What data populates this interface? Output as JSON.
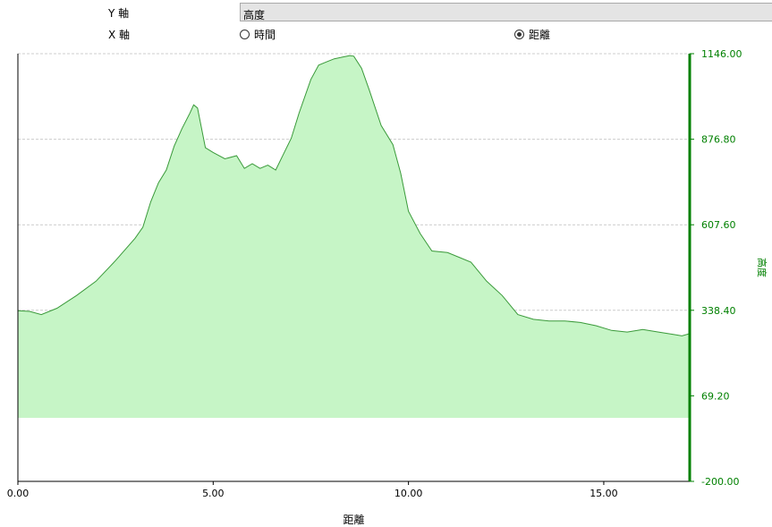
{
  "controls": {
    "y_axis_label": "Y 軸",
    "x_axis_label": "X 軸",
    "y_selected": "高度",
    "x_options": [
      {
        "label": "時間",
        "checked": false
      },
      {
        "label": "距離",
        "checked": true
      }
    ]
  },
  "chart_data": {
    "type": "area",
    "title": "",
    "xlabel": "距離",
    "ylabel": "高度",
    "xlim": [
      0,
      17.2
    ],
    "ylim": [
      -200,
      1146
    ],
    "x_ticks": [
      "0.00",
      "5.00",
      "10.00",
      "15.00"
    ],
    "y_ticks": [
      "1146.00",
      "876.80",
      "607.60",
      "338.40",
      "69.20",
      "-200.00"
    ],
    "grid": true,
    "axis_color": "#008000",
    "fill_color": "#c6f5c6",
    "line_color": "#3a9a3a",
    "baseline": 0,
    "series": [
      {
        "x": [
          0,
          0.3,
          0.6,
          1.0,
          1.5,
          2.0,
          2.5,
          3.0,
          3.2,
          3.4,
          3.6,
          3.8,
          4.0,
          4.2,
          4.4,
          4.5,
          4.6,
          4.8,
          5.0,
          5.3,
          5.6,
          5.8,
          6.0,
          6.2,
          6.4,
          6.6,
          6.8,
          7.0,
          7.2,
          7.5,
          7.7,
          7.9,
          8.1,
          8.3,
          8.5,
          8.6,
          8.8,
          9.0,
          9.3,
          9.6,
          9.8,
          10.0,
          10.3,
          10.6,
          11.0,
          11.3,
          11.6,
          12.0,
          12.4,
          12.8,
          13.2,
          13.6,
          14.0,
          14.4,
          14.8,
          15.2,
          15.6,
          16.0,
          16.4,
          16.8,
          17.0,
          17.2
        ],
        "y": [
          337,
          335,
          325,
          345,
          385,
          430,
          495,
          565,
          600,
          680,
          740,
          780,
          855,
          910,
          958,
          985,
          975,
          850,
          835,
          815,
          825,
          785,
          800,
          785,
          795,
          780,
          830,
          880,
          960,
          1065,
          1110,
          1120,
          1130,
          1135,
          1140,
          1138,
          1100,
          1030,
          920,
          860,
          770,
          650,
          580,
          525,
          520,
          505,
          490,
          430,
          385,
          325,
          310,
          305,
          305,
          300,
          290,
          275,
          270,
          278,
          270,
          262,
          258,
          265
        ]
      }
    ]
  }
}
